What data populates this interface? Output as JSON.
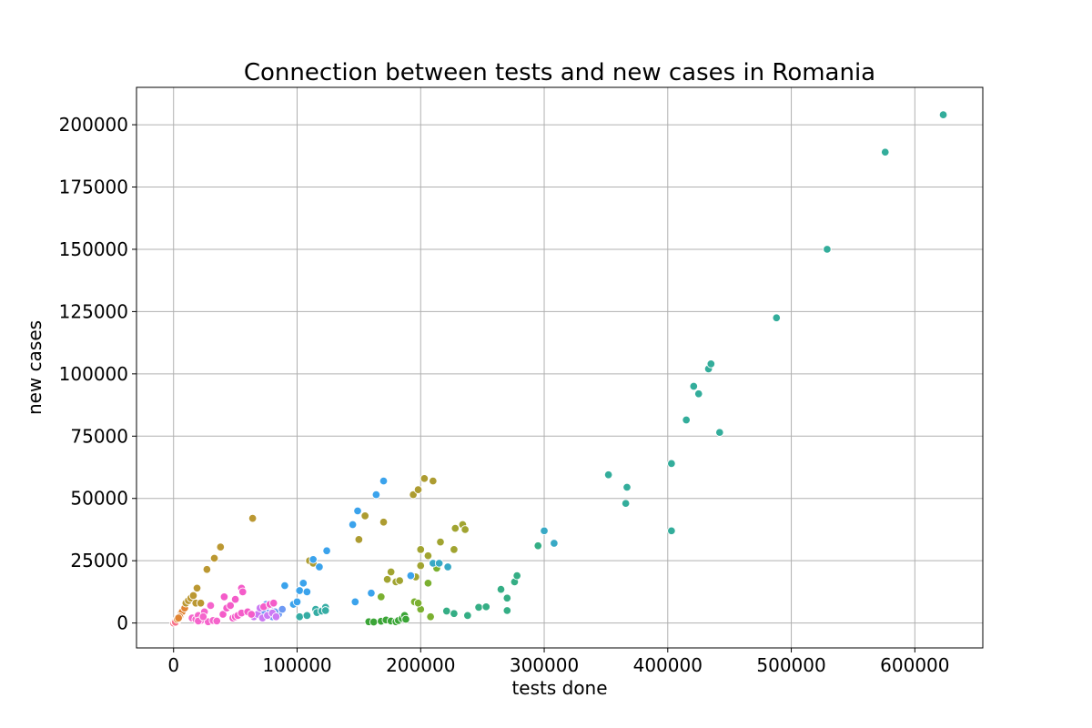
{
  "chart_data": {
    "type": "scatter",
    "title": "Connection between tests and new cases in Romania",
    "xlabel": "tests done",
    "ylabel": "new cases",
    "xlim": [
      -30000,
      655000
    ],
    "ylim": [
      -10000,
      215000
    ],
    "xticks": [
      0,
      100000,
      200000,
      300000,
      400000,
      500000,
      600000
    ],
    "yticks": [
      0,
      25000,
      50000,
      75000,
      100000,
      125000,
      150000,
      175000,
      200000
    ],
    "grid": true,
    "legend": "none",
    "series": [
      {
        "color": "#f77189",
        "points": [
          [
            0,
            0
          ],
          [
            1000,
            500
          ],
          [
            2000,
            200
          ],
          [
            3000,
            1000
          ],
          [
            1500,
            300
          ]
        ]
      },
      {
        "color": "#e18432",
        "points": [
          [
            3000,
            1500
          ],
          [
            5000,
            3000
          ],
          [
            6000,
            4000
          ],
          [
            8000,
            5500
          ],
          [
            7000,
            4500
          ],
          [
            9000,
            6000
          ],
          [
            5000,
            2500
          ],
          [
            4000,
            2000
          ]
        ]
      },
      {
        "color": "#bb9832",
        "points": [
          [
            10000,
            8000
          ],
          [
            12000,
            9000
          ],
          [
            14000,
            10000
          ],
          [
            16000,
            11000
          ],
          [
            18000,
            8000
          ],
          [
            19000,
            14000
          ],
          [
            22000,
            8000
          ],
          [
            27000,
            21500
          ],
          [
            33000,
            26000
          ],
          [
            38000,
            30500
          ],
          [
            64000,
            42000
          ]
        ]
      },
      {
        "color": "#ad9c31",
        "points": [
          [
            110000,
            25000
          ],
          [
            113000,
            24000
          ],
          [
            150000,
            33500
          ],
          [
            155000,
            43000
          ],
          [
            170000,
            40500
          ],
          [
            194000,
            51500
          ],
          [
            198000,
            53500
          ],
          [
            203000,
            58000
          ],
          [
            210000,
            57000
          ]
        ]
      },
      {
        "color": "#a1a431",
        "points": [
          [
            173000,
            17500
          ],
          [
            176000,
            20500
          ],
          [
            180000,
            16500
          ],
          [
            183000,
            17000
          ],
          [
            196000,
            18500
          ],
          [
            200000,
            23000
          ],
          [
            206000,
            27000
          ],
          [
            216000,
            32500
          ],
          [
            200000,
            29500
          ],
          [
            227000,
            29500
          ],
          [
            228000,
            38000
          ],
          [
            234000,
            39500
          ],
          [
            236000,
            37500
          ]
        ]
      },
      {
        "color": "#7bb031",
        "points": [
          [
            168000,
            10500
          ],
          [
            200000,
            5500
          ],
          [
            206000,
            16000
          ],
          [
            208000,
            2500
          ],
          [
            213000,
            22000
          ],
          [
            195000,
            8500
          ],
          [
            198000,
            8000
          ]
        ]
      },
      {
        "color": "#3ba537",
        "points": [
          [
            158000,
            500
          ],
          [
            162000,
            400
          ],
          [
            168000,
            700
          ],
          [
            172000,
            1200
          ],
          [
            176000,
            800
          ],
          [
            180000,
            500
          ],
          [
            182000,
            1000
          ],
          [
            185000,
            1800
          ],
          [
            187000,
            3000
          ],
          [
            188000,
            1500
          ]
        ]
      },
      {
        "color": "#35ae85",
        "points": [
          [
            221000,
            4800
          ],
          [
            227000,
            3800
          ],
          [
            238000,
            3000
          ],
          [
            247000,
            6300
          ],
          [
            253000,
            6500
          ],
          [
            265000,
            13500
          ],
          [
            270000,
            10000
          ],
          [
            270000,
            5000
          ],
          [
            276000,
            16500
          ],
          [
            278000,
            19000
          ],
          [
            295000,
            31000
          ]
        ]
      },
      {
        "color": "#33ad9b",
        "points": [
          [
            352000,
            59500
          ],
          [
            367000,
            54500
          ],
          [
            366000,
            48000
          ],
          [
            403000,
            64000
          ],
          [
            403000,
            37000
          ],
          [
            415000,
            81500
          ],
          [
            421000,
            95000
          ],
          [
            425000,
            92000
          ],
          [
            433000,
            102000
          ],
          [
            435000,
            104000
          ],
          [
            442000,
            76500
          ],
          [
            488000,
            122500
          ],
          [
            529000,
            150000
          ],
          [
            576000,
            189000
          ],
          [
            623000,
            204000
          ]
        ]
      },
      {
        "color": "#36ada4",
        "points": [
          [
            102000,
            2500
          ],
          [
            108000,
            3000
          ],
          [
            115000,
            5500
          ],
          [
            116000,
            4200
          ],
          [
            120000,
            4800
          ],
          [
            123000,
            6300
          ],
          [
            123000,
            5000
          ]
        ]
      },
      {
        "color": "#38a9c5",
        "points": [
          [
            210000,
            24000
          ],
          [
            215000,
            24000
          ],
          [
            222000,
            22500
          ],
          [
            300000,
            37000
          ],
          [
            308000,
            32000
          ]
        ]
      },
      {
        "color": "#3ba3ec",
        "points": [
          [
            90000,
            15000
          ],
          [
            97000,
            7500
          ],
          [
            100000,
            8500
          ],
          [
            102000,
            13000
          ],
          [
            105000,
            16000
          ],
          [
            108000,
            12500
          ],
          [
            113000,
            25500
          ],
          [
            118000,
            22500
          ],
          [
            124000,
            29000
          ],
          [
            145000,
            39500
          ],
          [
            149000,
            45000
          ],
          [
            160000,
            12000
          ],
          [
            164000,
            51500
          ],
          [
            170000,
            57000
          ],
          [
            192000,
            19000
          ],
          [
            147000,
            8500
          ]
        ]
      },
      {
        "color": "#6e9af4",
        "points": [
          [
            72000,
            5000
          ],
          [
            75000,
            7500
          ],
          [
            78000,
            5500
          ],
          [
            80000,
            2500
          ],
          [
            85000,
            3500
          ],
          [
            88000,
            5500
          ],
          [
            82000,
            4500
          ]
        ]
      },
      {
        "color": "#cc7af4",
        "points": [
          [
            65000,
            2500
          ],
          [
            68000,
            3500
          ],
          [
            72000,
            2000
          ],
          [
            76000,
            3000
          ],
          [
            80000,
            4000
          ],
          [
            83000,
            2500
          ],
          [
            70000,
            6000
          ],
          [
            77000,
            7000
          ]
        ]
      },
      {
        "color": "#f45cc9",
        "points": [
          [
            40000,
            3500
          ],
          [
            43000,
            6000
          ],
          [
            46000,
            7000
          ],
          [
            48000,
            2000
          ],
          [
            50000,
            2500
          ],
          [
            52000,
            3000
          ],
          [
            55000,
            4000
          ],
          [
            60000,
            4500
          ],
          [
            63000,
            3500
          ],
          [
            73000,
            6500
          ],
          [
            78000,
            7500
          ],
          [
            81000,
            8000
          ],
          [
            50000,
            9500
          ],
          [
            41000,
            10500
          ],
          [
            55000,
            14000
          ],
          [
            56000,
            12500
          ]
        ]
      },
      {
        "color": "#f565cc",
        "points": [
          [
            15000,
            2000
          ],
          [
            18000,
            1500
          ],
          [
            20000,
            3000
          ],
          [
            22000,
            1000
          ],
          [
            25000,
            4500
          ],
          [
            28000,
            500
          ],
          [
            30000,
            7000
          ],
          [
            32000,
            1000
          ],
          [
            35000,
            800
          ],
          [
            20000,
            800
          ],
          [
            24000,
            2500
          ]
        ]
      }
    ]
  }
}
